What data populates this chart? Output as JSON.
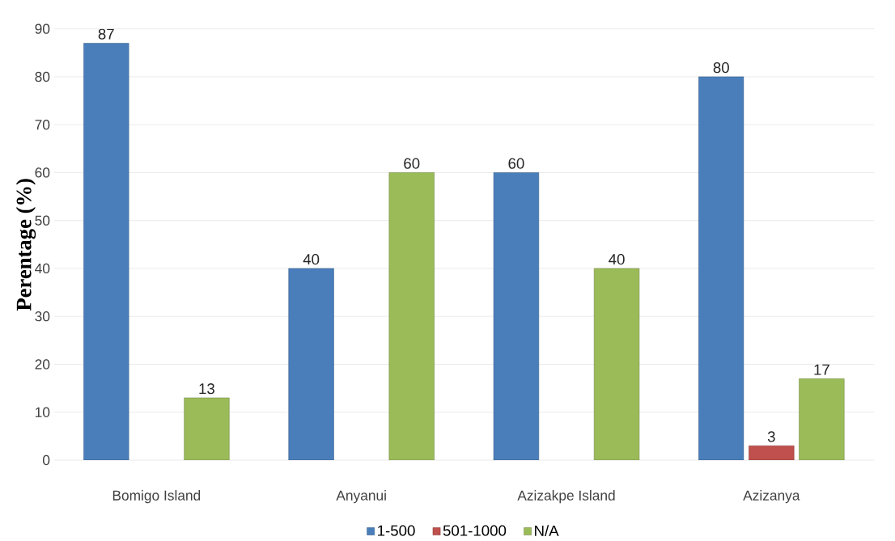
{
  "chart_data": {
    "type": "bar",
    "ylabel": "Perentage (%)",
    "categories": [
      "Bomigo Island",
      "Anyanui",
      "Azizakpe Island",
      "Azizanya"
    ],
    "series": [
      {
        "name": "1-500",
        "color": "#4a7ebb",
        "values": [
          87,
          40,
          60,
          80
        ]
      },
      {
        "name": "501-1000",
        "color": "#c0504d",
        "values": [
          null,
          null,
          null,
          3
        ]
      },
      {
        "name": "N/A",
        "color": "#9bbb59",
        "values": [
          13,
          60,
          40,
          17
        ]
      }
    ],
    "ylim": [
      0,
      90
    ],
    "yticks": [
      0,
      10,
      20,
      30,
      40,
      50,
      60,
      70,
      80,
      90
    ],
    "grid": "y",
    "legend": "bottom",
    "data_labels": true
  }
}
